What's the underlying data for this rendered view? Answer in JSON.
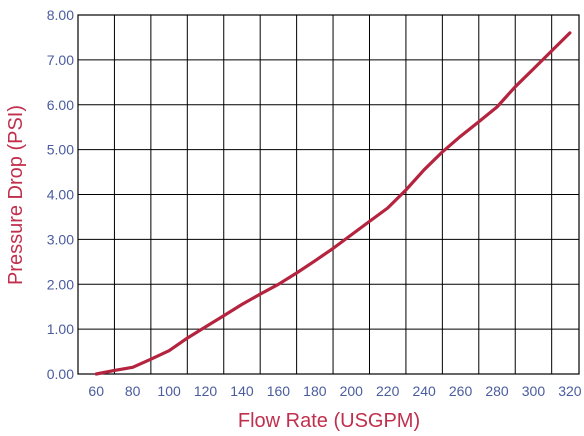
{
  "chart_data": {
    "type": "line",
    "xlabel": "Flow Rate (USGPM)",
    "ylabel": "Pressure Drop (PSI)",
    "x_ticks": [
      "60",
      "80",
      "100",
      "120",
      "140",
      "160",
      "180",
      "200",
      "220",
      "240",
      "260",
      "280",
      "300",
      "320"
    ],
    "y_ticks": [
      "0.00",
      "1.00",
      "2.00",
      "3.00",
      "4.00",
      "5.00",
      "6.00",
      "7.00",
      "8.00"
    ],
    "xlim": [
      50,
      325
    ],
    "ylim": [
      0,
      8
    ],
    "grid": true,
    "series": [
      {
        "x": [
          60,
          70,
          80,
          90,
          100,
          110,
          120,
          130,
          140,
          150,
          160,
          170,
          180,
          190,
          200,
          210,
          220,
          230,
          240,
          250,
          260,
          270,
          280,
          290,
          300,
          310,
          320
        ],
        "y": [
          0.0,
          0.08,
          0.15,
          0.33,
          0.52,
          0.8,
          1.05,
          1.3,
          1.55,
          1.78,
          2.0,
          2.25,
          2.52,
          2.8,
          3.1,
          3.4,
          3.7,
          4.1,
          4.55,
          4.95,
          5.3,
          5.62,
          5.95,
          6.4,
          6.8,
          7.2,
          7.6
        ],
        "color": "#b5243f"
      }
    ],
    "colors": {
      "tick_text": "#4a5c9e",
      "axis_title": "#c0304d",
      "grid": "#000000",
      "line": "#b5243f"
    }
  }
}
